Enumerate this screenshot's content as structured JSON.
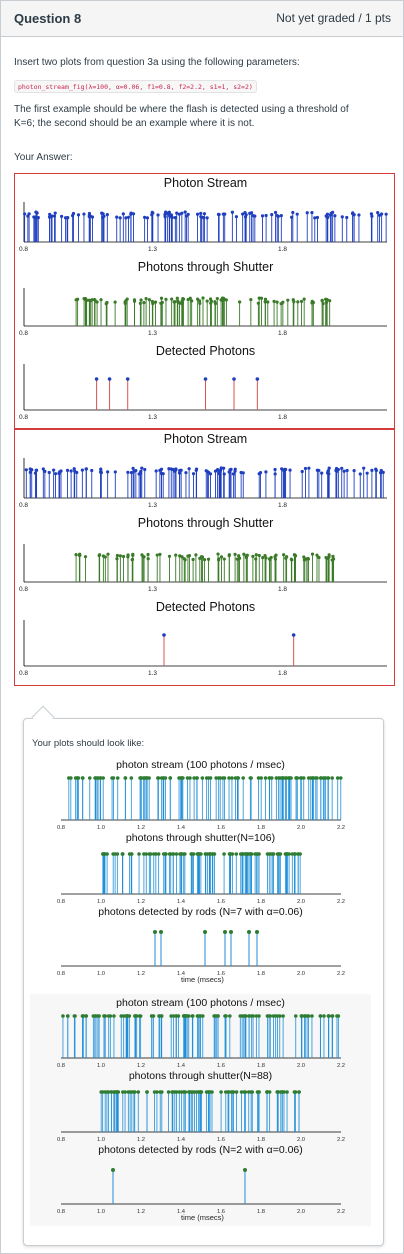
{
  "question": {
    "title": "Question 8",
    "status": "Not yet graded / 1 pts",
    "prompt": "Insert two plots from question 3a using the following parameters:",
    "code": "photon_stream_fig(λ=100, α=0.06, f1=0.8, f2=2.2, s1=1, s2=2)",
    "instruction_line1": "The first example should be where the flash is detected using a threshold of",
    "instruction_line2": "K=6; the second should be an example where it is not.",
    "your_answer_label": "Your Answer:"
  },
  "answer_plots": [
    {
      "panels": [
        {
          "title": "Photon Stream",
          "color": "#1f3fbf",
          "ticks": [
            "0.8",
            "1.3",
            "1.8"
          ]
        },
        {
          "title": "Photons through Shutter",
          "color": "#3a7a28",
          "ticks": [
            "0.8",
            "1.3",
            "1.8"
          ]
        },
        {
          "title": "Detected Photons",
          "color": "#d9534f",
          "ticks": [
            "0.8",
            "1.3",
            "1.8"
          ]
        }
      ],
      "detected_x": [
        1.08,
        1.13,
        1.2,
        1.5,
        1.61,
        1.7
      ]
    },
    {
      "panels": [
        {
          "title": "Photon Stream",
          "color": "#1f3fbf",
          "ticks": [
            "0.8",
            "1.3",
            "1.8"
          ]
        },
        {
          "title": "Photons through Shutter",
          "color": "#3a7a28",
          "ticks": [
            "0.8",
            "1.3",
            "1.8"
          ]
        },
        {
          "title": "Detected Photons",
          "color": "#d9534f",
          "ticks": [
            "0.8",
            "1.3",
            "1.8"
          ]
        }
      ],
      "detected_x": [
        1.34,
        1.84
      ]
    }
  ],
  "reference": {
    "label": "Your plots should look like:",
    "x_ticks": [
      "0.8",
      "1.0",
      "1.2",
      "1.4",
      "1.6",
      "1.8",
      "2.0",
      "2.2"
    ],
    "xlabel": "time (msecs)",
    "example1": {
      "stream_title": "photon stream (100 photons / msec)",
      "shutter_title": "photons through shutter(N=106)",
      "detected_title": "photons detected by rods (N=7 with α=0.06)",
      "detected_x": [
        1.27,
        1.3,
        1.52,
        1.62,
        1.65,
        1.74,
        1.78
      ]
    },
    "example2": {
      "stream_title": "photon stream (100 photons / msec)",
      "shutter_title": "photons through shutter(N=88)",
      "detected_title": "photons detected by rods (N=2 with α=0.06)",
      "detected_x": [
        1.06,
        1.72
      ]
    },
    "stem_color": "#1f8fd8",
    "marker_color": "#2e7d32"
  }
}
